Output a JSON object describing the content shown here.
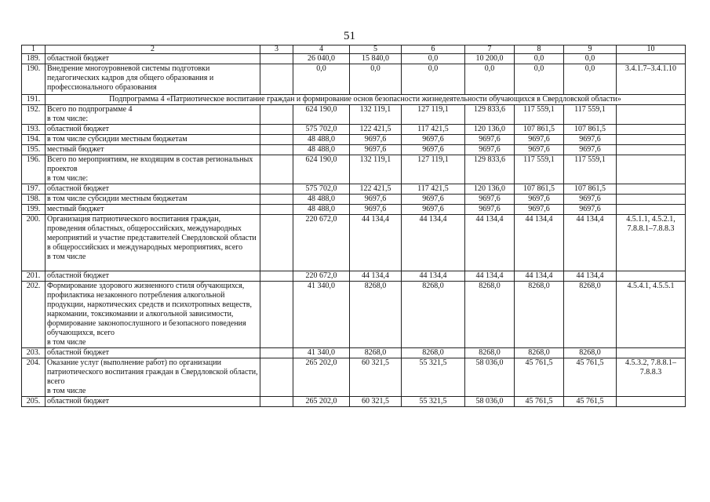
{
  "page_number": "51",
  "header": [
    "1",
    "2",
    "3",
    "4",
    "5",
    "6",
    "7",
    "8",
    "9",
    "10"
  ],
  "rows": [
    {
      "n": "189.",
      "name": "областной бюджет",
      "v": [
        "",
        "26 040,0",
        "15 840,0",
        "0,0",
        "10 200,0",
        "0,0",
        "0,0",
        ""
      ]
    },
    {
      "n": "190.",
      "name": "Внедрение многоуровневой системы подготовки педагогических кадров для общего образования и профессионального образования",
      "v": [
        "",
        "0,0",
        "0,0",
        "0,0",
        "0,0",
        "0,0",
        "0,0",
        "3.4.1.7–3.4.1.10"
      ]
    },
    {
      "n": "191.",
      "subheading": "Подпрограмма 4 «Патриотическое воспитание граждан и формирование основ безопасности жизнедеятельности обучающихся в Свердловской области»"
    },
    {
      "n": "192.",
      "name": "Всего по подпрограмме 4\nв том числе:",
      "v": [
        "",
        "624 190,0",
        "132 119,1",
        "127 119,1",
        "129 833,6",
        "117 559,1",
        "117 559,1",
        ""
      ]
    },
    {
      "n": "193.",
      "name": "областной бюджет",
      "v": [
        "",
        "575 702,0",
        "122 421,5",
        "117 421,5",
        "120 136,0",
        "107 861,5",
        "107 861,5",
        ""
      ]
    },
    {
      "n": "194.",
      "name": "в том числе субсидии местным бюджетам",
      "v": [
        "",
        "48 488,0",
        "9697,6",
        "9697,6",
        "9697,6",
        "9697,6",
        "9697,6",
        ""
      ]
    },
    {
      "n": "195.",
      "name": "местный бюджет",
      "v": [
        "",
        "48 488,0",
        "9697,6",
        "9697,6",
        "9697,6",
        "9697,6",
        "9697,6",
        ""
      ]
    },
    {
      "n": "196.",
      "name": "Всего по мероприятиям, не входящим в состав региональных проектов\nв том числе:",
      "v": [
        "",
        "624 190,0",
        "132 119,1",
        "127 119,1",
        "129 833,6",
        "117 559,1",
        "117 559,1",
        ""
      ]
    },
    {
      "n": "197.",
      "name": "областной бюджет",
      "v": [
        "",
        "575 702,0",
        "122 421,5",
        "117 421,5",
        "120 136,0",
        "107 861,5",
        "107 861,5",
        ""
      ]
    },
    {
      "n": "198.",
      "name": "в том числе субсидии местным бюджетам",
      "v": [
        "",
        "48 488,0",
        "9697,6",
        "9697,6",
        "9697,6",
        "9697,6",
        "9697,6",
        ""
      ]
    },
    {
      "n": "199.",
      "name": "местный бюджет",
      "v": [
        "",
        "48 488,0",
        "9697,6",
        "9697,6",
        "9697,6",
        "9697,6",
        "9697,6",
        ""
      ]
    },
    {
      "n": "200.",
      "name": "Организация патриотического воспитания граждан, проведения областных, общероссийских, международных мероприятий и участие представителей Свердловской области в общероссийских и международных мероприятиях, всего\nв том числе",
      "v": [
        "",
        "220 672,0",
        "44 134,4",
        "44 134,4",
        "44 134,4",
        "44 134,4",
        "44 134,4",
        "4.5.1.1, 4.5.2.1, 7.8.8.1–7.8.8.3"
      ]
    },
    {
      "n": "201.",
      "name": "областной бюджет",
      "v": [
        "",
        "220 672,0",
        "44 134,4",
        "44 134,4",
        "44 134,4",
        "44 134,4",
        "44 134,4",
        ""
      ]
    },
    {
      "n": "202.",
      "name": "Формирование здорового жизненного стиля обучающихся, профилактика незаконного потребления алкогольной продукции, наркотических средств и психотропных веществ, наркомании, токсикомании и алкогольной зависимости, формирование законопослушного и безопасного поведения обучающихся, всего\nв том числе",
      "v": [
        "",
        "41 340,0",
        "8268,0",
        "8268,0",
        "8268,0",
        "8268,0",
        "8268,0",
        "4.5.4.1, 4.5.5.1"
      ]
    },
    {
      "n": "203.",
      "name": "областной бюджет",
      "v": [
        "",
        "41 340,0",
        "8268,0",
        "8268,0",
        "8268,0",
        "8268,0",
        "8268,0",
        ""
      ]
    },
    {
      "n": "204.",
      "name": "Оказание услуг (выполнение работ) по организации патриотического воспитания граждан в Свердловской области, всего\nв том числе",
      "v": [
        "",
        "265 202,0",
        "60 321,5",
        "55 321,5",
        "58 036,0",
        "45 761,5",
        "45 761,5",
        "4.5.3.2, 7.8.8.1–7.8.8.3"
      ]
    },
    {
      "n": "205.",
      "name": "областной бюджет",
      "v": [
        "",
        "265 202,0",
        "60 321,5",
        "55 321,5",
        "58 036,0",
        "45 761,5",
        "45 761,5",
        ""
      ]
    }
  ]
}
